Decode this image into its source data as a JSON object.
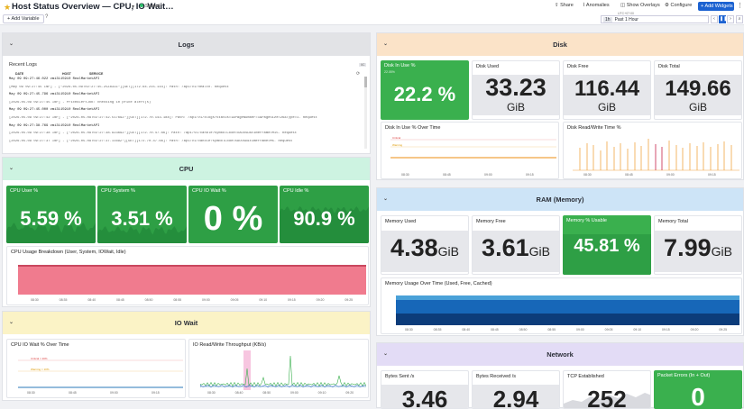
{
  "header": {
    "title": "Host Status Overview — CPU, IO Wait…",
    "shared": "Shared",
    "share": "Share",
    "anomalies": "Anomalies",
    "show_overlays": "Show Overlays",
    "configure": "Configure",
    "add_widgets": "Add Widgets",
    "more": "⋮",
    "add_variable": "Add Variable",
    "help": "?",
    "timezone": "UTC+07:00",
    "time_badge": "1h",
    "time_range": "Past 1 Hour"
  },
  "sections": {
    "logs": "Logs",
    "disk": "Disk",
    "cpu": "CPU",
    "ram": "RAM (Memory)",
    "io": "IO Wait",
    "net": "Network"
  },
  "logs": {
    "title": "Recent Logs",
    "cols": [
      "DATE",
      "HOST",
      "SERVICE"
    ],
    "badge": "IIC",
    "rows": [
      {
        "l": "May 09 09:27:46.022  vmi3115910  RealMarketAPI",
        "t": "label"
      },
      {
        "l": "[May 09 09:27:45 INF]  - [\"2026-05-09T02:27:45.25Z832Z\"][GET][172.64.215.144]: Path: /api/v1/health. Request",
        "t": "log"
      },
      {
        "l": "May 09 09:27:45.796  vmi3115910  RealMarketAPI",
        "t": "label"
      },
      {
        "l": "[2026-05-09 09:27:45 INF]  - PriceAlertJob: checking 10 price alert(s)",
        "t": "log"
      },
      {
        "l": "May 09 09:27:45.000  vmi3115910  RealMarketAPI",
        "t": "label"
      },
      {
        "l": "[2026-05-09 09:27:42 INF]  - [\"2026-05-09T02:27:42.51769Z\"][GET][172.70.143.188]: Path: /api/v1/blogs?Status=1&PageNumber=1&PageSize=26&Type=1. Request",
        "t": "log"
      },
      {
        "l": "May 09 09:27:38.769  vmi3115910  RealMarketAPI",
        "t": "label"
      },
      {
        "l": "[2026-05-09 09:27:38 INF]  - [\"2026-05-09T02:27:38.92369Z\"][GET][172.70.47.66]: Path: /api/v1/candle?symbolCode=XAUUSD&timeFrame=M15. Request",
        "t": "log"
      },
      {
        "l": "[2026-05-09 09:27:37 INF]  - [\"2026-05-09T02:27:37.1169Z\"][GET][172.70.47.66]: Path: /api/v1/candle?symbolCode=XAUUSD&timeFrame=M5. Request",
        "t": "log"
      }
    ]
  },
  "disk": {
    "in_use_label": "Disk In Use %",
    "in_use": "22.2 %",
    "in_use_sub": "22.05%",
    "used_label": "Disk Used",
    "used": "33.23",
    "used_unit": "GiB",
    "free_label": "Disk Free",
    "free": "116.44",
    "free_unit": "GiB",
    "total_label": "Disk Total",
    "total": "149.66",
    "total_unit": "GiB",
    "over_time": "Disk In Use % Over Time",
    "rw": "Disk Read/Write Time %",
    "critical": "Critical",
    "warning": "Warning",
    "times": [
      "08:30",
      "08:45",
      "09:00",
      "09:15"
    ]
  },
  "cpu": {
    "user_label": "CPU User %",
    "user": "5.59 %",
    "system_label": "CPU System %",
    "system": "3.51 %",
    "iowait_label": "CPU IO Wait %",
    "iowait": "0 %",
    "idle_label": "CPU Idle %",
    "idle": "90.9 %",
    "breakdown": "CPU Usage Breakdown (User, System, IOWait, Idle)",
    "times": [
      "08:30",
      "08:35",
      "08:40",
      "08:45",
      "08:50",
      "08:55",
      "09:00",
      "09:05",
      "09:10",
      "09:15",
      "09:20",
      "09:25"
    ]
  },
  "ram": {
    "used_label": "Memory Used",
    "used": "4.38",
    "used_unit": "GiB",
    "free_label": "Memory Free",
    "free": "3.61",
    "free_unit": "GiB",
    "usable_label": "Memory % Usable",
    "usable": "45.81 %",
    "total_label": "Memory Total",
    "total": "7.99",
    "total_unit": "GiB",
    "over_time": "Memory Usage Over Time (Used, Free, Cached)",
    "times": [
      "08:30",
      "08:35",
      "08:40",
      "08:45",
      "08:50",
      "08:55",
      "09:00",
      "09:05",
      "09:10",
      "09:15",
      "09:20",
      "09:25"
    ]
  },
  "io": {
    "over_time": "CPU IO Wait % Over Time",
    "throughput": "IO Read/Write Throughput (KB/s)",
    "critical": "Critical = 20%",
    "warning": "Warning = 10%",
    "times": [
      "08:30",
      "08:45",
      "09:00",
      "09:15"
    ],
    "times2": [
      "08:30",
      "08:40",
      "08:50",
      "09:00",
      "09:10",
      "09:20"
    ]
  },
  "net": {
    "sent_label": "Bytes Sent /s",
    "sent": "3.46",
    "recv_label": "Bytes Received /s",
    "recv": "2.94",
    "tcp_label": "TCP Established",
    "tcp": "252",
    "err_label": "Packet Errors (In + Out)",
    "err": "0"
  },
  "colors": {
    "green": "#3ab04e",
    "logs_bg": "#e2e3e6",
    "disk_bg": "#fbe3c8",
    "cpu_bg": "#cdf3e1",
    "ram_bg": "#cde4f7",
    "io_bg": "#fbf3c6",
    "net_bg": "#e3dcf6",
    "cpu_area": "#f07b8e",
    "mem_dark": "#0c3c7a",
    "mem_mid": "#1767b8",
    "mem_light": "#4aa1d8",
    "spike": "#f0a542"
  }
}
